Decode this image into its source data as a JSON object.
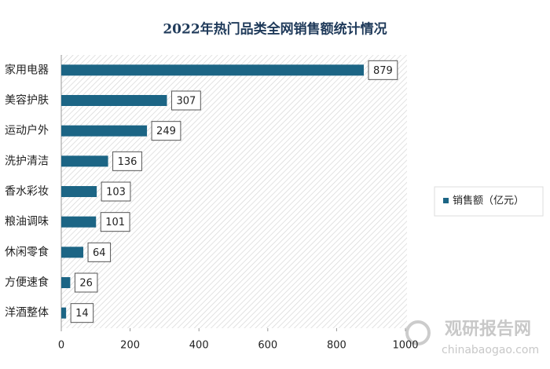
{
  "chart_data": {
    "type": "hbar",
    "title": "2022年热门品类全网销售额统计情况",
    "categories": [
      "家用电器",
      "美容护肤",
      "运动户外",
      "洗护清洁",
      "香水彩妆",
      "粮油调味",
      "休闲零食",
      "方便速食",
      "洋酒整体"
    ],
    "series": [
      {
        "name": "销售额（亿元）",
        "color": "#1c6585",
        "values": [
          879,
          307,
          249,
          136,
          103,
          101,
          64,
          26,
          14
        ]
      }
    ],
    "xlim": [
      0,
      1000
    ],
    "xticks": [
      0,
      200,
      400,
      600,
      800,
      1000
    ],
    "grid": false,
    "legend": "right",
    "watermark": {
      "title": "观研报告网",
      "url": "chinabaogao.com"
    }
  }
}
